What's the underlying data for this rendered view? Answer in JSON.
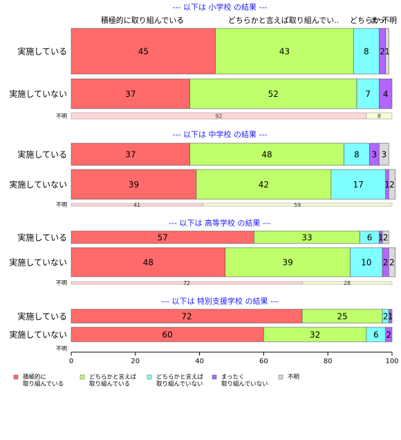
{
  "chart_data": {
    "type": "bar",
    "orientation": "horizontal",
    "stacked": true,
    "xlim": [
      0,
      100
    ],
    "x_ticks": [
      "0",
      "20",
      "40",
      "60",
      "80",
      "100"
    ],
    "grid": false,
    "column_headers": [
      "積極的に取り組んでいる",
      "どちらかと言えば取り組んでい..",
      "どちらか",
      "まっ",
      "不明"
    ],
    "legend": {
      "position": "bottom",
      "entries": [
        {
          "lines": [
            "積極的に",
            "取り組んでいる"
          ],
          "color": "#FF6B6B"
        },
        {
          "lines": [
            "どちらかと言えば",
            "取り組んでいる"
          ],
          "color": "#BFFF6B"
        },
        {
          "lines": [
            "どちらかと言えば",
            "取り組んでいない"
          ],
          "color": "#7FFFFF"
        },
        {
          "lines": [
            "まったく",
            "取り組んでいない"
          ],
          "color": "#B266FF"
        },
        {
          "lines": [
            "不明"
          ],
          "color": "#D9D9D9"
        }
      ]
    },
    "groups": [
      {
        "title": "--- 以下は 小学校 の結果 ---",
        "bars": [
          {
            "label": "実施している",
            "values": [
              45,
              43,
              8,
              2,
              1
            ],
            "value_labels": [
              "45",
              "43",
              "8",
              "2",
              "1"
            ]
          },
          {
            "label": "実施していない",
            "values": [
              37,
              52,
              7,
              4,
              0
            ],
            "value_labels": [
              "37",
              "52",
              "7",
              "4",
              ""
            ]
          }
        ],
        "unknown": {
          "label": "不明",
          "values": [
            92,
            8
          ],
          "value_labels": [
            "92",
            "8"
          ]
        }
      },
      {
        "title": "--- 以下は 中学校 の結果 ---",
        "bars": [
          {
            "label": "実施している",
            "values": [
              37,
              48,
              8,
              3,
              3
            ],
            "value_labels": [
              "37",
              "48",
              "8",
              "3",
              "3"
            ]
          },
          {
            "label": "実施していない",
            "values": [
              39,
              42,
              17,
              1,
              2
            ],
            "value_labels": [
              "39",
              "42",
              "17",
              "1",
              "2"
            ]
          }
        ],
        "unknown": {
          "label": "不明",
          "values": [
            41,
            59
          ],
          "value_labels": [
            "41",
            "59"
          ]
        }
      },
      {
        "title": "--- 以下は 高等学校 の結果 ---",
        "bars": [
          {
            "label": "実施している",
            "values": [
              57,
              33,
              6,
              1,
              2
            ],
            "value_labels": [
              "57",
              "33",
              "6",
              "1",
              "2"
            ]
          },
          {
            "label": "実施していない",
            "values": [
              48,
              39,
              10,
              2,
              2
            ],
            "value_labels": [
              "48",
              "39",
              "10",
              "2",
              "2"
            ]
          }
        ],
        "unknown": {
          "label": "不明",
          "values": [
            72,
            28
          ],
          "value_labels": [
            "72",
            "28"
          ]
        }
      },
      {
        "title": "--- 以下は 特別支援学校 の結果 ---",
        "bars": [
          {
            "label": "実施している",
            "values": [
              72,
              25,
              2,
              1,
              0
            ],
            "value_labels": [
              "72",
              "25",
              "2",
              "1",
              ""
            ]
          },
          {
            "label": "実施していない",
            "values": [
              60,
              32,
              6,
              2,
              0
            ],
            "value_labels": [
              "60",
              "32",
              "6",
              "2",
              ""
            ]
          }
        ],
        "unknown": {
          "label": "不明",
          "values": [],
          "value_labels": []
        }
      }
    ]
  }
}
